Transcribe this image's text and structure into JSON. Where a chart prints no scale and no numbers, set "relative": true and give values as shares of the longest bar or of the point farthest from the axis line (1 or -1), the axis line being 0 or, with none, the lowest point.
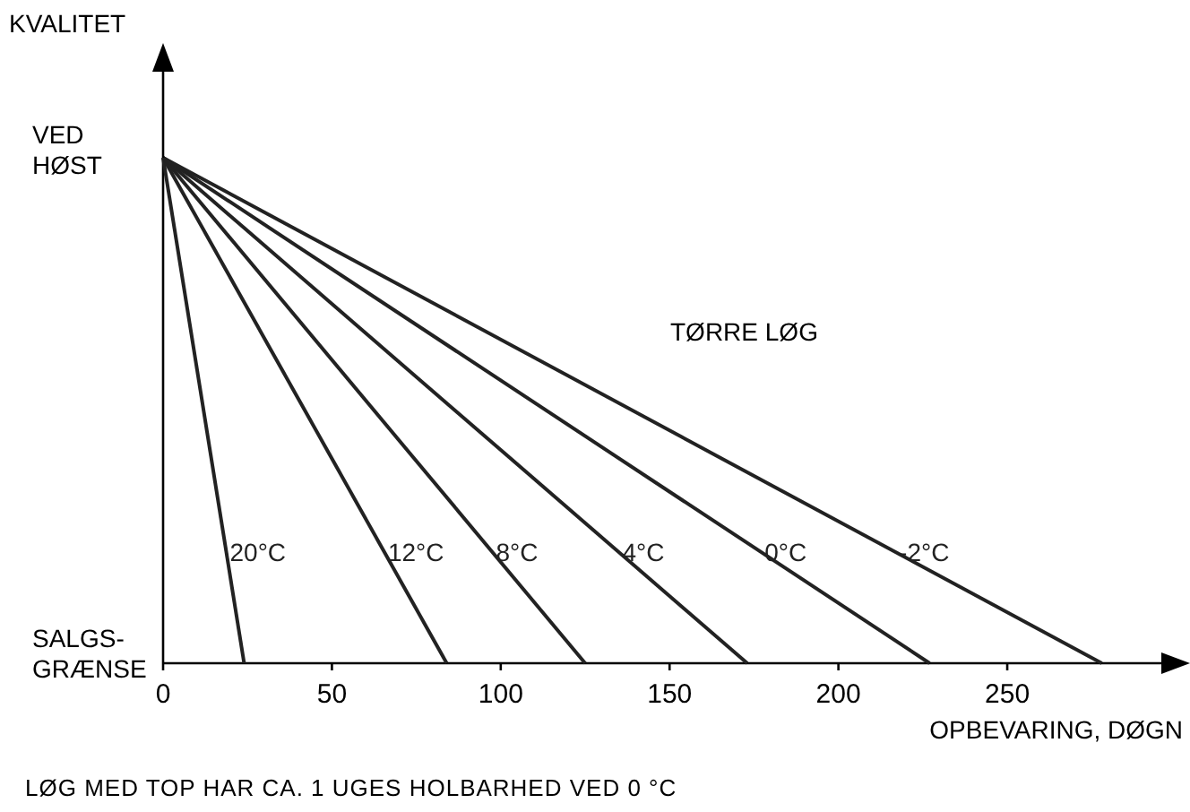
{
  "chart_data": {
    "type": "line",
    "xlabel": "OPBEVARING, DØGN",
    "ylabel": "KVALITET",
    "xlim": [
      0,
      302
    ],
    "xticks": [
      0,
      50,
      100,
      150,
      200,
      250
    ],
    "relative": true,
    "legend": false,
    "marker": "none",
    "line_style": "solid",
    "series": [
      {
        "name": "20°C",
        "color": "#222222",
        "x": [
          0,
          24
        ],
        "values": [
          1,
          0
        ]
      },
      {
        "name": "12°C",
        "color": "#222222",
        "x": [
          0,
          84
        ],
        "values": [
          1,
          0
        ]
      },
      {
        "name": "8°C",
        "color": "#222222",
        "x": [
          0,
          125
        ],
        "values": [
          1,
          0
        ]
      },
      {
        "name": "4°C",
        "color": "#222222",
        "x": [
          0,
          173
        ],
        "values": [
          1,
          0
        ]
      },
      {
        "name": "0°C",
        "color": "#222222",
        "x": [
          0,
          227
        ],
        "values": [
          1,
          0
        ]
      },
      {
        "name": "-2°C",
        "color": "#222222",
        "x": [
          0,
          278
        ],
        "values": [
          1,
          0
        ]
      }
    ],
    "annotations": [
      "VED\nHØST",
      "SALGS-\nGRÆNSE",
      "TØRRE LØG",
      "LØG MED TOP HAR CA. 1 UGES HOLBARHED VED 0 °C"
    ]
  }
}
